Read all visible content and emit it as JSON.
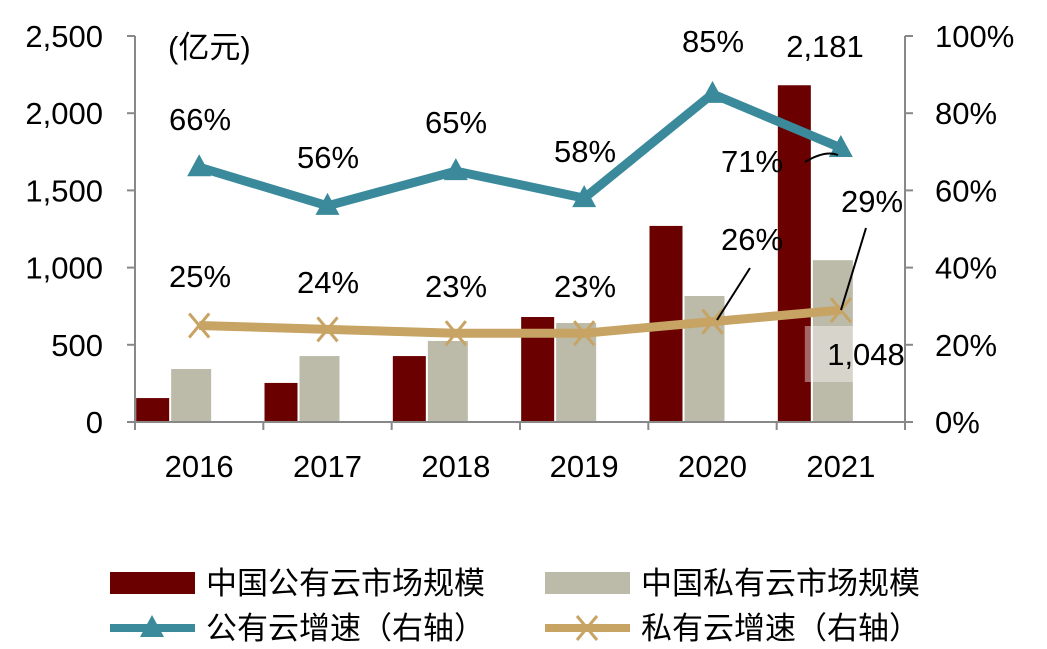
{
  "chart_data": {
    "type": "bar",
    "unit_label": "(亿元)",
    "categories": [
      "2016",
      "2017",
      "2018",
      "2019",
      "2020",
      "2021"
    ],
    "y_left": {
      "range": [
        0,
        2500
      ],
      "ticks": [
        "0",
        "500",
        "1,000",
        "1,500",
        "2,000",
        "2,500"
      ]
    },
    "y_right": {
      "range": [
        0,
        100
      ],
      "ticks": [
        "0%",
        "20%",
        "40%",
        "60%",
        "80%",
        "100%"
      ]
    },
    "series": [
      {
        "name": "中国公有云市场规模",
        "type": "bar",
        "axis": "left",
        "color": "#6b0000",
        "values": [
          155,
          253,
          427,
          680,
          1270,
          2181
        ],
        "labels": [
          "",
          "",
          "",
          "",
          "",
          "2,181"
        ]
      },
      {
        "name": "中国私有云市场规模",
        "type": "bar",
        "axis": "left",
        "color": "#bcbaa8",
        "values": [
          343,
          427,
          525,
          641,
          816,
          1048
        ],
        "labels": [
          "",
          "",
          "",
          "",
          "",
          "1,048"
        ]
      },
      {
        "name": "公有云增速（右轴）",
        "type": "line",
        "axis": "right",
        "color": "#3a8a9c",
        "marker": "triangle",
        "values": [
          66,
          56,
          65,
          58,
          85,
          71
        ],
        "labels": [
          "66%",
          "56%",
          "65%",
          "58%",
          "85%",
          "71%"
        ]
      },
      {
        "name": "私有云增速（右轴）",
        "type": "line",
        "axis": "right",
        "color": "#c8a464",
        "marker": "x",
        "values": [
          25,
          24,
          23,
          23,
          26,
          29
        ],
        "labels": [
          "25%",
          "24%",
          "23%",
          "23%",
          "26%",
          "29%"
        ]
      }
    ],
    "legend": "bottom"
  }
}
